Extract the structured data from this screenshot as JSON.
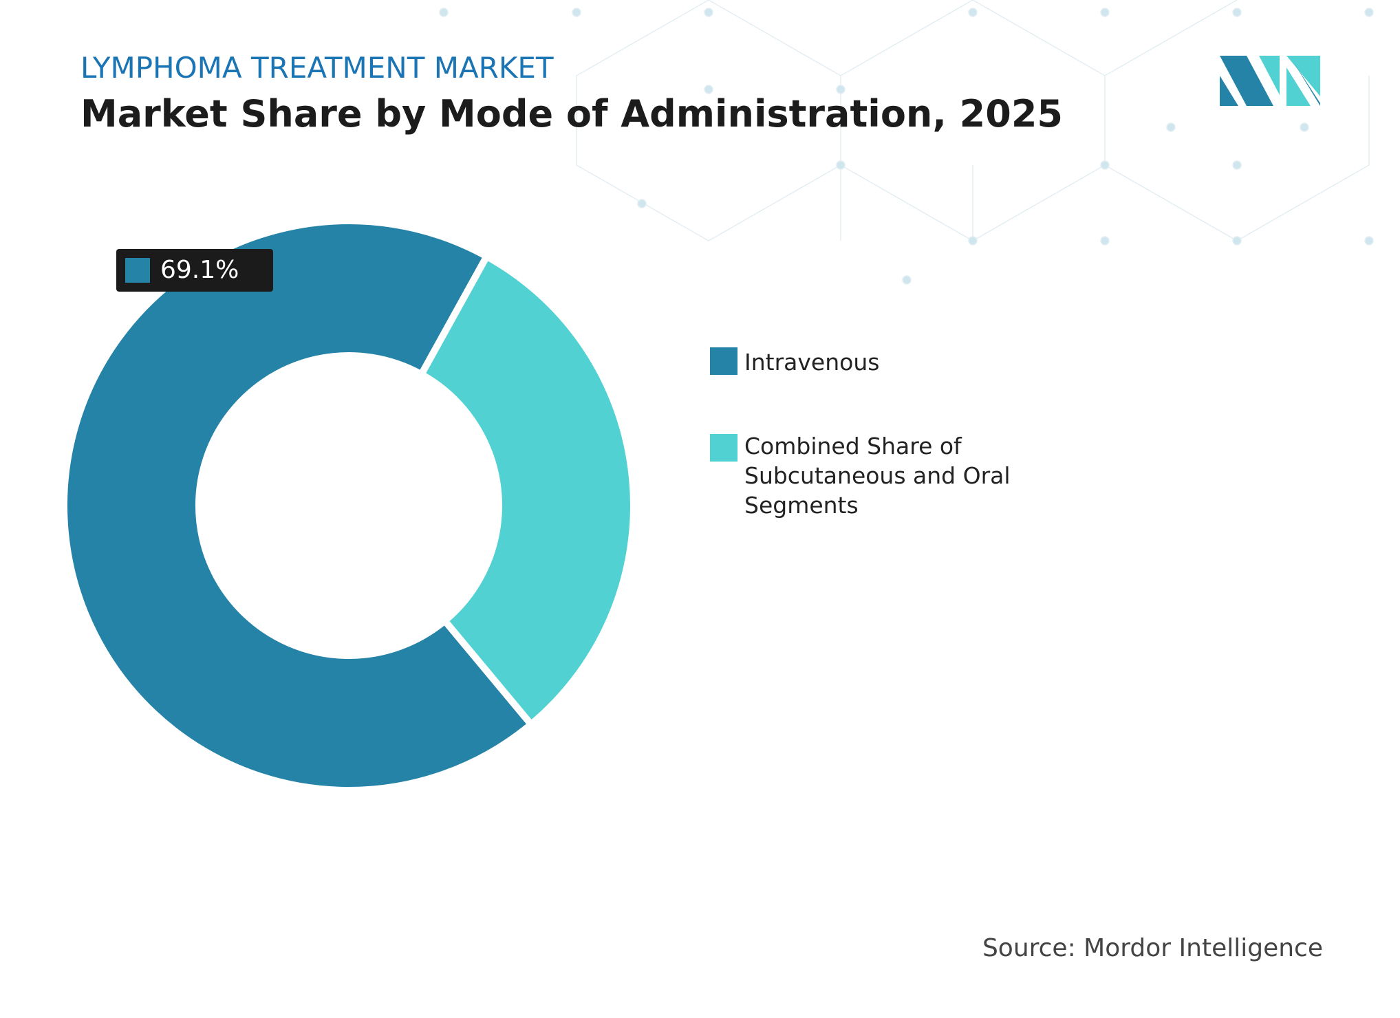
{
  "chart_data": {
    "type": "donut",
    "subtitle": "LYMPHOMA TREATMENT MARKET",
    "title": "Market Share by Mode of Administration, 2025",
    "series": [
      {
        "name": "Intravenous",
        "color": "#2683a8"
      },
      {
        "name": "Combined Share of Subcutaneous and Oral Segments",
        "color": "#52d1d3"
      }
    ],
    "values": [
      69.1,
      30.9
    ],
    "value_labels": [
      "69.1%",
      null
    ],
    "source": "Source: Mordor Intelligence"
  }
}
